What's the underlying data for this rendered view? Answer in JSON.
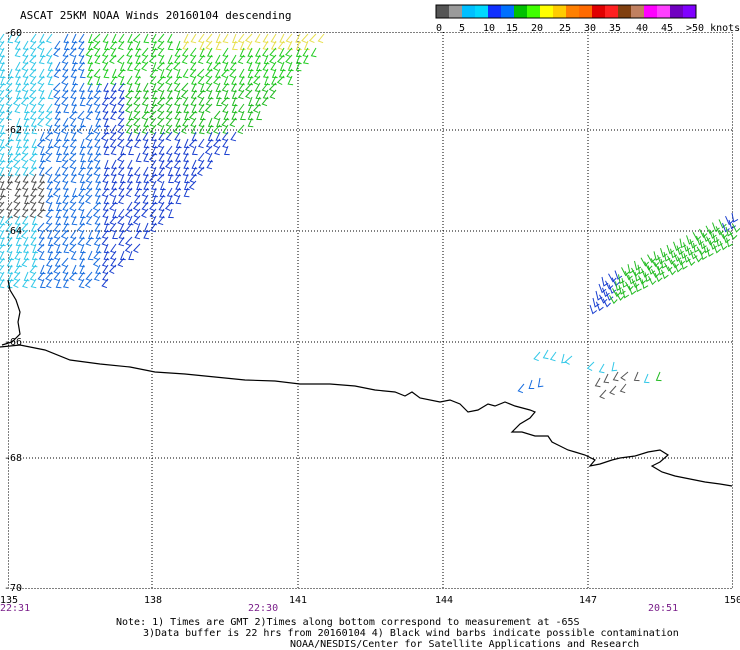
{
  "title": "ASCAT 25KM NOAA Winds 20160104 descending",
  "legend": {
    "colors": [
      "#555555",
      "#9a9a9a",
      "#00bfff",
      "#00d8ff",
      "#1030ff",
      "#0070ff",
      "#00c000",
      "#40ff00",
      "#ffff00",
      "#ffcc00",
      "#ff8000",
      "#ff6a00",
      "#e00000",
      "#ff2020",
      "#804010",
      "#c08060",
      "#ff00ff",
      "#ff40ff",
      "#7000c0",
      "#8000ff"
    ],
    "labels": [
      "0",
      "5",
      "10",
      "15",
      "20",
      "25",
      "30",
      "35",
      "40",
      "45",
      ">50 knots"
    ]
  },
  "lat_labels": [
    "-60",
    "-62",
    "-64",
    "-66",
    "-68",
    "-70"
  ],
  "lon_labels": [
    "135",
    "138",
    "141",
    "144",
    "147",
    "150"
  ],
  "time_labels": [
    "22:31",
    "22:30",
    "20:51"
  ],
  "notes": [
    "Note: 1) Times are GMT 2)Times along bottom correspond to measurement at -65S",
    "3)Data buffer is 22 hrs from 20160104 4) Black wind barbs indicate possible contamination",
    "NOAA/NESDIS/Center for Satellite Applications and Research"
  ]
}
